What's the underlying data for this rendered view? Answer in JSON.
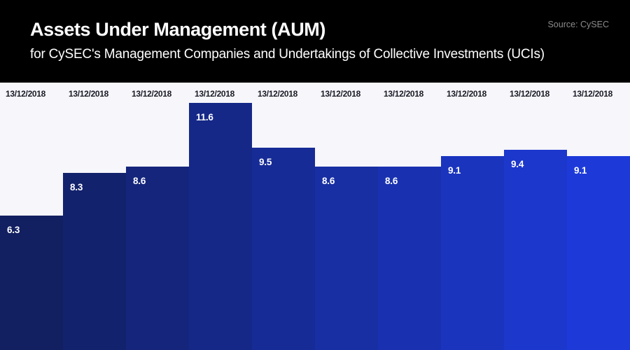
{
  "header": {
    "title": "Assets Under Management (AUM)",
    "subtitle": "for CySEC's Management Companies and Undertakings of Collective Investments (UCIs)",
    "source": "Source: CySEC"
  },
  "chart_data": {
    "type": "bar",
    "title": "Assets Under Management (AUM)",
    "subtitle": "for CySEC's Management Companies and Undertakings of Collective Investments (UCIs)",
    "source": "Source: CySEC",
    "categories": [
      "13/12/2018",
      "13/12/2018",
      "13/12/2018",
      "13/12/2018",
      "13/12/2018",
      "13/12/2018",
      "13/12/2018",
      "13/12/2018",
      "13/12/2018",
      "13/12/2018"
    ],
    "values": [
      6.3,
      8.3,
      8.6,
      11.6,
      9.5,
      8.6,
      8.6,
      9.1,
      9.4,
      9.1
    ],
    "xlabel": "",
    "ylabel": "",
    "ylim": [
      0,
      12.55
    ],
    "grid": false,
    "legend": false,
    "bar_colors": [
      "#121f60",
      "#13226d",
      "#14257b",
      "#152888",
      "#172b96",
      "#182ea3",
      "#1931b0",
      "#1a34be",
      "#1c37cb",
      "#1d3ad9"
    ],
    "value_label_position": "inside-top-left",
    "category_label_position": "top-of-plot",
    "plot_background": "#f6f6fb",
    "header_background": "#000000",
    "value_label_color": "#ffffff",
    "category_label_color": "#1b1b26"
  }
}
